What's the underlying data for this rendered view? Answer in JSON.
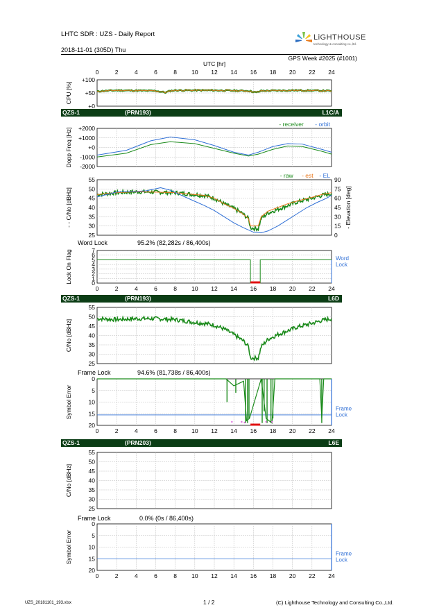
{
  "header": {
    "title": "LHTC SDR : UZS - Daily Report",
    "date": "2018-11-01 (305D)  Thu",
    "gps_week": "GPS Week #2025 (#1001)",
    "logo_name": "LiGHTHOUSE",
    "logo_sub": "technology & consulting co.,ltd."
  },
  "footer": {
    "filename": "UZS_20181101_193.xlsx",
    "page": "1 / 2",
    "copyright": "(C) Lighthouse Technology and Consulting Co.,Ltd."
  },
  "bands": [
    {
      "left": "QZS-1",
      "mid": "(PRN193)",
      "right": "L1C/A"
    },
    {
      "left": "QZS-1",
      "mid": "(PRN193)",
      "right": "L6D"
    },
    {
      "left": "QZS-1",
      "mid": "(PRN203)",
      "right": "L6E"
    }
  ],
  "section_labels": {
    "word_lock": "Word Lock",
    "word_lock_stat": "95.2% (82,282s / 86,400s)",
    "frame_lock_1": "Frame Lock",
    "frame_lock_1_stat": "94.6% (81,738s / 86,400s)",
    "frame_lock_2": "Frame Lock",
    "frame_lock_2_stat": "0.0% (0s / 86,400s)"
  },
  "colors": {
    "green": "#1a8a1a",
    "orange": "#e8761a",
    "blue": "#2f6fd6",
    "red": "#e01010",
    "magenta": "#e070e0",
    "band": "#0b3d15",
    "grid": "#bfbfbf"
  },
  "chart_data": [
    {
      "id": "cpu",
      "type": "line",
      "title": "",
      "xlabel": "UTC [hr]",
      "ylabel": "CPU [%]",
      "xlim": [
        0,
        24
      ],
      "ylim": [
        0,
        100
      ],
      "xticks": [
        "0",
        "2",
        "4",
        "6",
        "8",
        "10",
        "12",
        "14",
        "16",
        "18",
        "20",
        "22",
        "24"
      ],
      "yticks": [
        "+0",
        "+50",
        "+100"
      ],
      "series": [
        {
          "values": [
            [
              0,
              55
            ],
            [
              0.3,
              57
            ],
            [
              2,
              60
            ],
            [
              4,
              59
            ],
            [
              6,
              58
            ],
            [
              7,
              52
            ],
            [
              7.5,
              58
            ],
            [
              8,
              60
            ],
            [
              12,
              60
            ],
            [
              15.5,
              58
            ],
            [
              16.3,
              52
            ],
            [
              16.8,
              58
            ],
            [
              20,
              60
            ],
            [
              24,
              58
            ]
          ]
        }
      ]
    },
    {
      "id": "doppler",
      "type": "line",
      "ylabel": "Dopp Freq [Hz]",
      "xlim": [
        0,
        24
      ],
      "ylim": [
        -2000,
        2000
      ],
      "yticks": [
        "-2000",
        "-1000",
        "+0",
        "+1000",
        "+2000"
      ],
      "legend": [
        "- receiver",
        "- orbit"
      ],
      "series": [
        {
          "name": "receiver",
          "values": [
            [
              0,
              -1000
            ],
            [
              3,
              -600
            ],
            [
              5.5,
              300
            ],
            [
              7.5,
              600
            ],
            [
              10,
              400
            ],
            [
              12,
              -100
            ],
            [
              14,
              -600
            ],
            [
              15.5,
              -900
            ],
            [
              16.5,
              -700
            ],
            [
              18,
              -200
            ],
            [
              19.5,
              150
            ],
            [
              21,
              100
            ],
            [
              23,
              -400
            ],
            [
              24,
              -700
            ]
          ]
        },
        {
          "name": "orbit",
          "values": [
            [
              0,
              -800
            ],
            [
              3,
              -300
            ],
            [
              5.5,
              700
            ],
            [
              7.5,
              1100
            ],
            [
              10,
              800
            ],
            [
              12,
              200
            ],
            [
              14,
              -500
            ],
            [
              15.5,
              -800
            ],
            [
              16.5,
              -500
            ],
            [
              18,
              100
            ],
            [
              19.5,
              400
            ],
            [
              21,
              350
            ],
            [
              23,
              -200
            ],
            [
              24,
              -500
            ]
          ]
        }
      ]
    },
    {
      "id": "cn0_l1",
      "type": "line",
      "ylabel": "- - C/No [dBHz]",
      "y2label": "- Elevation [deg]",
      "xlim": [
        0,
        24
      ],
      "ylim": [
        25,
        55
      ],
      "y2lim": [
        0,
        90
      ],
      "yticks": [
        "25",
        "30",
        "35",
        "40",
        "45",
        "50",
        "55"
      ],
      "y2ticks": [
        "0",
        "15",
        "30",
        "45",
        "60",
        "75",
        "90"
      ],
      "legend": [
        "- raw",
        "- est",
        "- EL"
      ],
      "series": [
        {
          "name": "raw",
          "values": [
            [
              0,
              47
            ],
            [
              2,
              48
            ],
            [
              4,
              48.5
            ],
            [
              6,
              48.3
            ],
            [
              8,
              48
            ],
            [
              10,
              47
            ],
            [
              11,
              46.5
            ],
            [
              12,
              45
            ],
            [
              13,
              42
            ],
            [
              14,
              39.5
            ],
            [
              14.8,
              37
            ],
            [
              15.5,
              34
            ],
            [
              15.7,
              29
            ],
            [
              16.5,
              28.5
            ],
            [
              16.8,
              34
            ],
            [
              17.5,
              37
            ],
            [
              18.5,
              39
            ],
            [
              19.5,
              41
            ],
            [
              20.5,
              43
            ],
            [
              22,
              45
            ],
            [
              23,
              46.5
            ],
            [
              24,
              47.5
            ]
          ]
        },
        {
          "name": "est",
          "values": [
            [
              0,
              47
            ],
            [
              2,
              48
            ],
            [
              4,
              48.5
            ],
            [
              6,
              48.3
            ],
            [
              8,
              48
            ],
            [
              10,
              47
            ],
            [
              11,
              46.5
            ],
            [
              12,
              45
            ],
            [
              13,
              42
            ],
            [
              14,
              39.5
            ],
            [
              14.8,
              37
            ],
            [
              15.5,
              34
            ],
            [
              15.7,
              30
            ],
            [
              16.5,
              30
            ],
            [
              16.8,
              35
            ],
            [
              17.5,
              38
            ],
            [
              18.5,
              40
            ],
            [
              19.5,
              42
            ],
            [
              20.5,
              43.5
            ],
            [
              22,
              45.5
            ],
            [
              23,
              47
            ],
            [
              24,
              48
            ]
          ]
        },
        {
          "name": "EL",
          "values": [
            [
              0,
              62
            ],
            [
              2,
              70
            ],
            [
              4,
              71
            ],
            [
              5,
              72
            ],
            [
              6.5,
              77
            ],
            [
              7.5,
              73
            ],
            [
              9,
              62
            ],
            [
              10,
              55
            ],
            [
              11,
              48
            ],
            [
              12,
              40
            ],
            [
              13,
              30
            ],
            [
              14,
              20
            ],
            [
              15,
              12
            ],
            [
              16,
              5
            ],
            [
              16.8,
              4
            ],
            [
              17.5,
              7
            ],
            [
              18.5,
              15
            ],
            [
              19.5,
              25
            ],
            [
              20.5,
              35
            ],
            [
              21.5,
              45
            ],
            [
              22.5,
              53
            ],
            [
              23.5,
              60
            ],
            [
              24,
              65
            ]
          ]
        }
      ]
    },
    {
      "id": "lock_flag",
      "type": "line",
      "ylabel": "Lock On Flag",
      "xlim": [
        0,
        24
      ],
      "ylim": [
        0,
        7
      ],
      "yticks": [
        "0",
        "1",
        "2",
        "3",
        "4",
        "5",
        "6",
        "7"
      ],
      "side_label": [
        "Word",
        "Lock"
      ],
      "series": [
        {
          "name": "flag",
          "values": [
            [
              0,
              5
            ],
            [
              15.7,
              5
            ],
            [
              15.7,
              0
            ],
            [
              16.7,
              0
            ],
            [
              16.7,
              5
            ],
            [
              24,
              5
            ]
          ]
        }
      ],
      "outage": [
        [
          15.7,
          16.7
        ]
      ]
    },
    {
      "id": "cn0_l6d",
      "type": "line",
      "ylabel": "C/No [dBHz]",
      "xlim": [
        0,
        24
      ],
      "ylim": [
        25,
        55
      ],
      "yticks": [
        "25",
        "30",
        "35",
        "40",
        "45",
        "50",
        "55"
      ],
      "series": [
        {
          "name": "C/No",
          "values": [
            [
              0,
              49
            ],
            [
              2,
              48.5
            ],
            [
              4,
              49
            ],
            [
              6,
              49
            ],
            [
              8,
              48.5
            ],
            [
              10,
              47
            ],
            [
              11,
              46.5
            ],
            [
              12,
              45.5
            ],
            [
              13,
              43.5
            ],
            [
              14,
              40.5
            ],
            [
              15,
              37
            ],
            [
              15.5,
              34
            ],
            [
              15.7,
              28
            ],
            [
              16.5,
              28
            ],
            [
              16.8,
              34
            ],
            [
              17.5,
              38
            ],
            [
              18.5,
              40.5
            ],
            [
              19.5,
              42.5
            ],
            [
              20.5,
              44.5
            ],
            [
              22,
              46.5
            ],
            [
              23,
              48
            ],
            [
              24,
              49
            ]
          ]
        }
      ]
    },
    {
      "id": "symerr_l6d",
      "type": "line",
      "ylabel": "Symbol Error",
      "xlim": [
        0,
        24
      ],
      "ylim": [
        20,
        0
      ],
      "yticks": [
        "0",
        "5",
        "10",
        "15",
        "20"
      ],
      "threshold": 15.5,
      "side_label": [
        "Frame",
        "Lock"
      ],
      "series": [
        {
          "name": "errors",
          "values": [
            [
              0,
              0
            ],
            [
              13.2,
              0
            ],
            [
              14,
              3
            ],
            [
              15,
              1
            ],
            [
              15.3,
              18
            ],
            [
              15.6,
              17
            ],
            [
              16.8,
              0
            ],
            [
              17.3,
              17
            ],
            [
              17.9,
              19
            ],
            [
              18.2,
              0
            ],
            [
              22.8,
              0
            ],
            [
              23,
              17
            ],
            [
              23.2,
              0
            ],
            [
              24,
              0
            ]
          ]
        }
      ],
      "outage": [
        [
          15.7,
          16.7
        ]
      ]
    },
    {
      "id": "cn0_l6e",
      "type": "line",
      "ylabel": "C/No [dBHz]",
      "xlim": [
        0,
        24
      ],
      "ylim": [
        25,
        55
      ],
      "yticks": [
        "25",
        "30",
        "35",
        "40",
        "45",
        "50",
        "55"
      ],
      "series": []
    },
    {
      "id": "symerr_l6e",
      "type": "line",
      "ylabel": "Symbol Error",
      "xlim": [
        0,
        24
      ],
      "ylim": [
        20,
        0
      ],
      "yticks": [
        "0",
        "5",
        "10",
        "15",
        "20"
      ],
      "threshold": 15,
      "side_label": [
        "Frame",
        "Lock"
      ],
      "series": []
    }
  ]
}
